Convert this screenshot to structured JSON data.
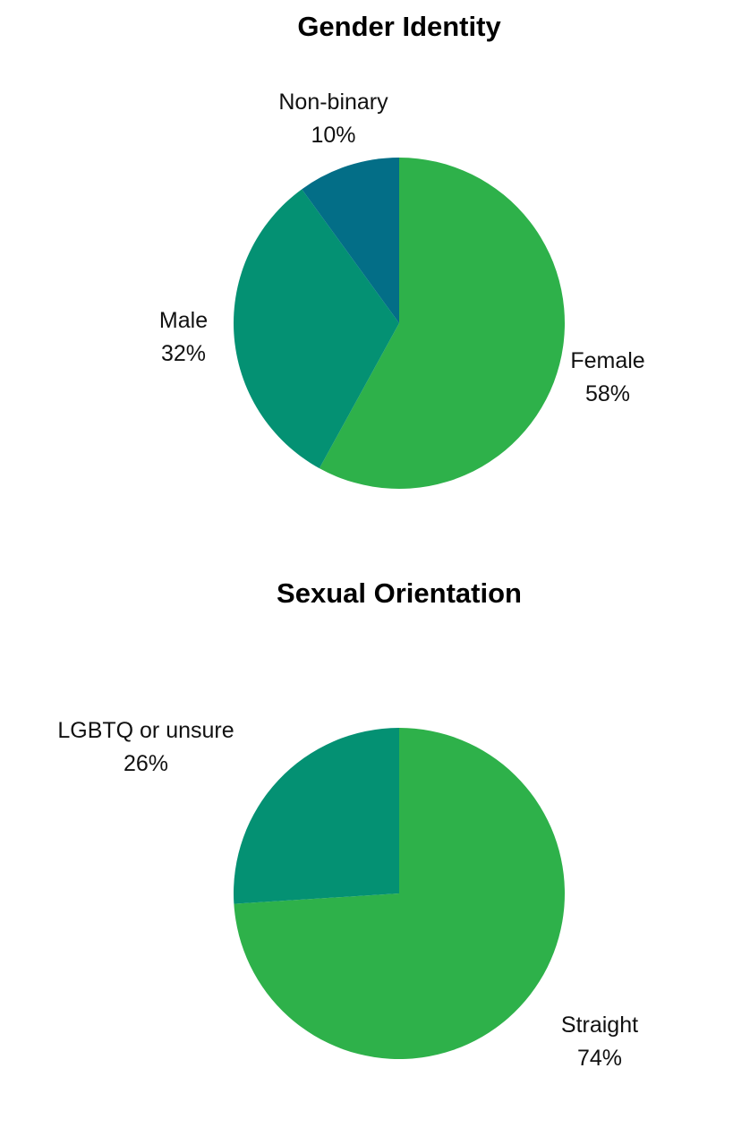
{
  "chart_data": [
    {
      "type": "pie",
      "title": "Gender Identity",
      "start_angle_deg": 0,
      "direction": "clockwise",
      "categories": [
        "Female",
        "Male",
        "Non-binary"
      ],
      "values": [
        58,
        32,
        10
      ],
      "value_labels": [
        "58%",
        "32%",
        "10%"
      ],
      "colors": [
        "#2eb14a",
        "#049173",
        "#036e87"
      ]
    },
    {
      "type": "pie",
      "title": "Sexual Orientation",
      "start_angle_deg": 0,
      "direction": "clockwise",
      "categories": [
        "Straight",
        "LGBTQ or unsure"
      ],
      "values": [
        74,
        26
      ],
      "value_labels": [
        "74%",
        "26%"
      ],
      "colors": [
        "#2eb14a",
        "#049173"
      ]
    }
  ]
}
